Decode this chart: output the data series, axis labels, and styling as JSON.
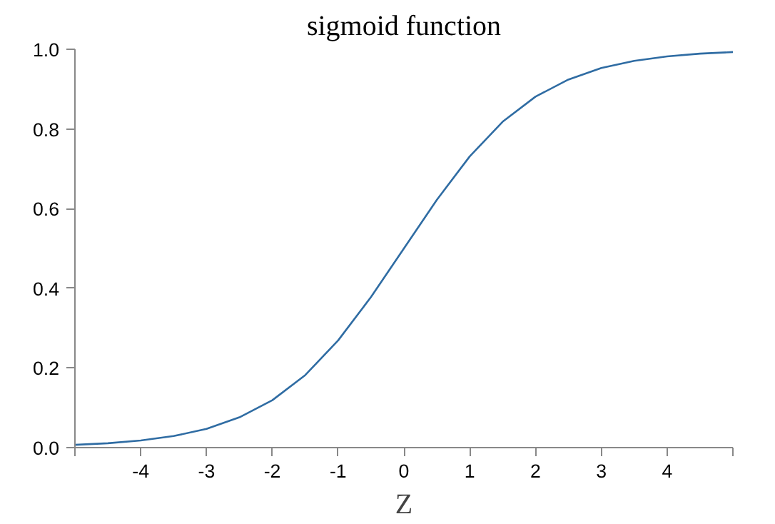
{
  "chart_data": {
    "type": "line",
    "title": "sigmoid function",
    "xlabel": "Z",
    "x": [
      -5,
      -4.5,
      -4,
      -3.5,
      -3,
      -2.5,
      -2,
      -1.5,
      -1,
      -0.5,
      0,
      0.5,
      1,
      1.5,
      2,
      2.5,
      3,
      3.5,
      4,
      4.5,
      5
    ],
    "series": [
      {
        "color": "#2f6ca3",
        "values": [
          0.007,
          0.011,
          0.018,
          0.029,
          0.047,
          0.076,
          0.119,
          0.182,
          0.269,
          0.378,
          0.5,
          0.622,
          0.731,
          0.818,
          0.881,
          0.924,
          0.953,
          0.971,
          0.982,
          0.989,
          0.993
        ]
      }
    ],
    "xlim": [
      -5,
      5
    ],
    "xticks": [
      {
        "value": -5,
        "label": null
      },
      -4,
      -3,
      -2,
      -1,
      0,
      1,
      2,
      3,
      4,
      {
        "value": 5,
        "label": null
      }
    ],
    "ylim": [
      0,
      1
    ],
    "yticks": [
      {
        "value": 0,
        "label": "0.0"
      },
      {
        "value": 0.2,
        "label": "0.2"
      },
      {
        "value": 0.4,
        "label": "0.4"
      },
      {
        "value": 0.6,
        "label": "0.6"
      },
      {
        "value": 0.8,
        "label": "0.8"
      },
      {
        "value": 1,
        "label": "1.0"
      }
    ],
    "grid": false,
    "marker": "none",
    "line_style": "solid"
  }
}
